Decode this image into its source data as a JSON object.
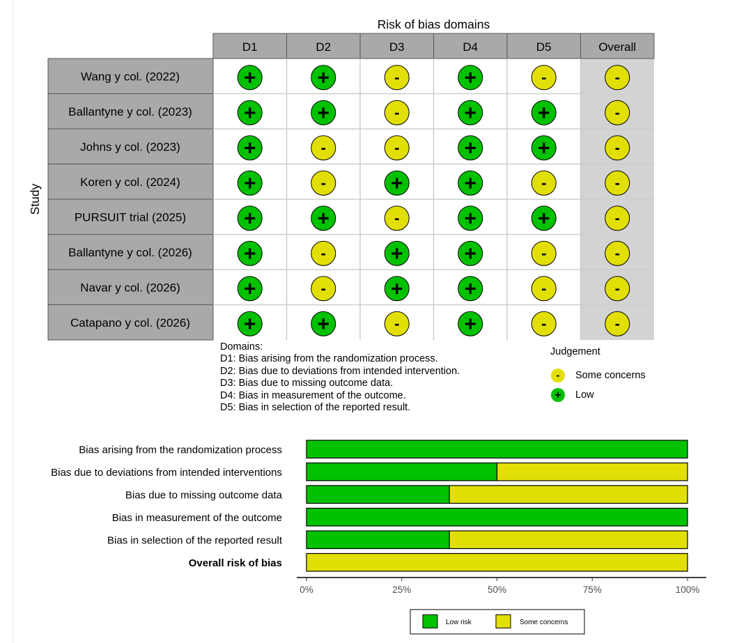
{
  "traffic_light": {
    "domains_title": "Risk of bias domains",
    "study_axis_label": "Study",
    "columns": [
      "D1",
      "D2",
      "D3",
      "D4",
      "D5",
      "Overall"
    ],
    "studies": [
      {
        "name": "Wang y col. (2022)",
        "judgements": [
          "+",
          "+",
          "-",
          "+",
          "-",
          "-"
        ]
      },
      {
        "name": "Ballantyne y col. (2023)",
        "judgements": [
          "+",
          "+",
          "-",
          "+",
          "+",
          "-"
        ]
      },
      {
        "name": "Johns y col. (2023)",
        "judgements": [
          "+",
          "-",
          "-",
          "+",
          "+",
          "-"
        ]
      },
      {
        "name": "Koren y col. (2024)",
        "judgements": [
          "+",
          "-",
          "+",
          "+",
          "-",
          "-"
        ]
      },
      {
        "name": "PURSUIT trial (2025)",
        "judgements": [
          "+",
          "+",
          "-",
          "+",
          "+",
          "-"
        ]
      },
      {
        "name": "Ballantyne y col. (2026)",
        "judgements": [
          "+",
          "-",
          "+",
          "+",
          "-",
          "-"
        ]
      },
      {
        "name": "Navar y col. (2026)",
        "judgements": [
          "+",
          "-",
          "+",
          "+",
          "-",
          "-"
        ]
      },
      {
        "name": "Catapano y col. (2026)",
        "judgements": [
          "+",
          "+",
          "-",
          "+",
          "-",
          "-"
        ]
      }
    ],
    "symbols": {
      "low": "+",
      "some_concerns": "-"
    },
    "domains_legend": {
      "heading": "Domains:",
      "items": [
        "D1: Bias arising from the randomization process.",
        "D2: Bias due to deviations from intended intervention.",
        "D3: Bias due to missing outcome data.",
        "D4: Bias in measurement of the outcome.",
        "D5: Bias in selection of the reported result."
      ]
    },
    "judgement_legend": {
      "title": "Judgement",
      "some_concerns": "Some concerns",
      "low": "Low"
    }
  },
  "chart_data": {
    "type": "bar",
    "orientation": "horizontal",
    "stacked": true,
    "categories": [
      "Bias arising from the randomization process",
      "Bias due to deviations from intended interventions",
      "Bias due to missing outcome data",
      "Bias in measurement of the outcome",
      "Bias in selection of the reported result",
      "Overall risk of bias"
    ],
    "bold_category": "Overall risk of bias",
    "series": [
      {
        "name": "Low risk",
        "values": [
          100,
          50,
          37.5,
          100,
          37.5,
          0
        ]
      },
      {
        "name": "Some concerns",
        "values": [
          0,
          50,
          62.5,
          0,
          62.5,
          100
        ]
      }
    ],
    "xlim": [
      0,
      100
    ],
    "xticks": [
      0,
      25,
      50,
      75,
      100
    ],
    "xtick_labels": [
      "0%",
      "25%",
      "50%",
      "75%",
      "100%"
    ],
    "legend_position": "bottom"
  },
  "colors": {
    "low": "#02c100",
    "some_concerns": "#e2df07",
    "header_fill": "#a9a9a9",
    "overall_fill": "#d3d3d3",
    "grid_line": "#c8d0c8"
  }
}
